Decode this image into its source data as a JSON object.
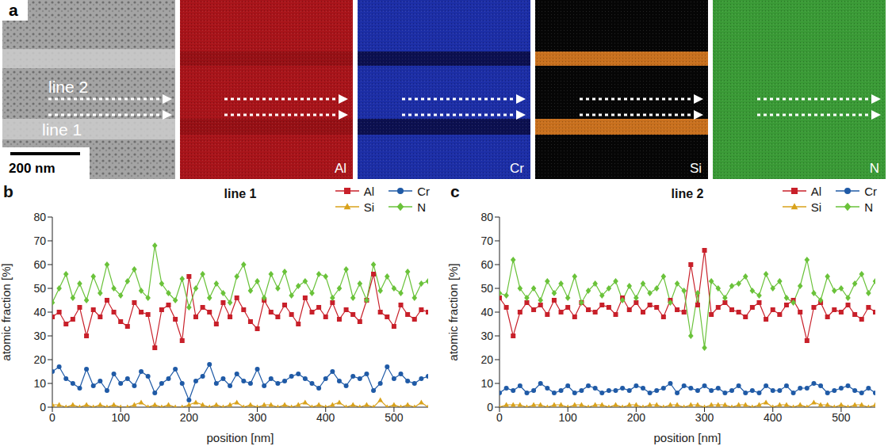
{
  "panel_a": {
    "panel_label": "a",
    "scale_bar": "200 nm",
    "line_labels": [
      "line 1",
      "line 2"
    ],
    "maps": [
      "Al",
      "Cr",
      "Si",
      "N"
    ]
  },
  "chart_data": [
    {
      "type": "line",
      "panel": "b",
      "title": "line 1",
      "x_label": "position [nm]",
      "y_label": "atomic fraction [%]",
      "xlim": [
        0,
        550
      ],
      "xticks": [
        0,
        100,
        200,
        300,
        400,
        500
      ],
      "ylim": [
        0,
        80
      ],
      "yticks": [
        0,
        10,
        20,
        30,
        40,
        50,
        60,
        70,
        80
      ],
      "grid": false,
      "legend": "top right",
      "x": [
        0,
        10,
        20,
        30,
        40,
        50,
        60,
        70,
        80,
        90,
        100,
        110,
        120,
        130,
        140,
        150,
        160,
        170,
        180,
        190,
        200,
        210,
        220,
        230,
        240,
        250,
        260,
        270,
        280,
        290,
        300,
        310,
        320,
        330,
        340,
        350,
        360,
        370,
        380,
        390,
        400,
        410,
        420,
        430,
        440,
        450,
        460,
        470,
        480,
        490,
        500,
        510,
        520,
        530,
        540,
        550
      ],
      "series": [
        {
          "name": "Al",
          "color": "#c8202a",
          "marker": "square",
          "values": [
            38,
            40,
            35,
            37,
            42,
            30,
            41,
            38,
            45,
            40,
            36,
            34,
            44,
            40,
            39,
            25,
            41,
            43,
            37,
            28,
            55,
            38,
            42,
            40,
            35,
            44,
            38,
            46,
            41,
            36,
            33,
            45,
            40,
            38,
            43,
            39,
            35,
            46,
            40,
            42,
            38,
            44,
            37,
            41,
            39,
            36,
            45,
            56,
            40,
            38,
            34,
            43,
            39,
            37,
            41,
            40
          ]
        },
        {
          "name": "Cr",
          "color": "#1f5aa6",
          "marker": "circle",
          "values": [
            15,
            17,
            12,
            10,
            8,
            16,
            9,
            11,
            7,
            14,
            10,
            12,
            9,
            15,
            13,
            6,
            10,
            12,
            16,
            10,
            3,
            11,
            13,
            18,
            10,
            12,
            9,
            14,
            11,
            10,
            16,
            9,
            12,
            10,
            11,
            13,
            14,
            12,
            10,
            8,
            12,
            15,
            11,
            9,
            13,
            12,
            14,
            7,
            10,
            17,
            12,
            14,
            11,
            10,
            12,
            13
          ]
        },
        {
          "name": "Si",
          "color": "#d9a21b",
          "marker": "triangle",
          "values": [
            1,
            1,
            0,
            1,
            0,
            1,
            0,
            1,
            0,
            1,
            0,
            0,
            1,
            2,
            0,
            1,
            0,
            1,
            0,
            0,
            1,
            2,
            1,
            0,
            1,
            0,
            1,
            2,
            0,
            1,
            0,
            1,
            1,
            0,
            1,
            0,
            1,
            2,
            0,
            1,
            0,
            1,
            2,
            0,
            1,
            0,
            1,
            0,
            3,
            0,
            1,
            0,
            1,
            0,
            2,
            0
          ]
        },
        {
          "name": "N",
          "color": "#6ac23a",
          "marker": "diamond",
          "values": [
            44,
            50,
            56,
            46,
            52,
            45,
            55,
            48,
            60,
            50,
            47,
            53,
            58,
            49,
            46,
            68,
            52,
            48,
            45,
            54,
            42,
            50,
            56,
            46,
            52,
            48,
            44,
            55,
            60,
            49,
            53,
            46,
            56,
            50,
            57,
            47,
            51,
            53,
            48,
            56,
            55,
            46,
            50,
            58,
            46,
            52,
            45,
            60,
            49,
            55,
            50,
            48,
            57,
            46,
            52,
            53
          ]
        }
      ]
    },
    {
      "type": "line",
      "panel": "c",
      "title": "line 2",
      "x_label": "position [nm]",
      "y_label": "atomic fraction [%]",
      "xlim": [
        0,
        550
      ],
      "xticks": [
        0,
        100,
        200,
        300,
        400,
        500
      ],
      "ylim": [
        0,
        80
      ],
      "yticks": [
        0,
        10,
        20,
        30,
        40,
        50,
        60,
        70,
        80
      ],
      "grid": false,
      "legend": "top right",
      "x": [
        0,
        10,
        20,
        30,
        40,
        50,
        60,
        70,
        80,
        90,
        100,
        110,
        120,
        130,
        140,
        150,
        160,
        170,
        180,
        190,
        200,
        210,
        220,
        230,
        240,
        250,
        260,
        270,
        280,
        290,
        300,
        310,
        320,
        330,
        340,
        350,
        360,
        370,
        380,
        390,
        400,
        410,
        420,
        430,
        440,
        450,
        460,
        470,
        480,
        490,
        500,
        510,
        520,
        530,
        540,
        550
      ],
      "series": [
        {
          "name": "Al",
          "color": "#c8202a",
          "marker": "square",
          "values": [
            46,
            42,
            30,
            40,
            44,
            41,
            43,
            39,
            45,
            40,
            42,
            38,
            44,
            41,
            40,
            43,
            42,
            39,
            46,
            41,
            44,
            40,
            43,
            42,
            38,
            45,
            41,
            40,
            60,
            43,
            66,
            39,
            42,
            44,
            41,
            40,
            38,
            42,
            44,
            37,
            41,
            39,
            43,
            45,
            40,
            28,
            42,
            44,
            38,
            41,
            40,
            43,
            39,
            37,
            42,
            40
          ]
        },
        {
          "name": "Cr",
          "color": "#1f5aa6",
          "marker": "circle",
          "values": [
            6,
            8,
            7,
            9,
            6,
            7,
            10,
            8,
            6,
            7,
            9,
            6,
            7,
            9,
            8,
            6,
            7,
            7,
            8,
            7,
            9,
            8,
            6,
            7,
            8,
            10,
            6,
            9,
            8,
            7,
            9,
            7,
            8,
            6,
            7,
            9,
            6,
            7,
            6,
            9,
            7,
            7,
            9,
            6,
            8,
            8,
            10,
            9,
            6,
            7,
            8,
            9,
            7,
            6,
            8,
            6
          ]
        },
        {
          "name": "Si",
          "color": "#d9a21b",
          "marker": "triangle",
          "values": [
            0,
            1,
            1,
            1,
            0,
            1,
            1,
            0,
            1,
            1,
            0,
            1,
            1,
            0,
            1,
            1,
            0,
            1,
            0,
            1,
            1,
            0,
            1,
            1,
            0,
            1,
            1,
            0,
            1,
            1,
            0,
            1,
            1,
            1,
            0,
            1,
            1,
            0,
            1,
            2,
            0,
            1,
            1,
            0,
            1,
            0,
            2,
            1,
            1,
            0,
            1,
            0,
            1,
            1,
            0,
            1
          ]
        },
        {
          "name": "N",
          "color": "#6ac23a",
          "marker": "diamond",
          "values": [
            48,
            47,
            62,
            50,
            46,
            50,
            45,
            53,
            48,
            52,
            46,
            55,
            44,
            49,
            52,
            47,
            50,
            53,
            45,
            51,
            46,
            52,
            48,
            50,
            55,
            44,
            52,
            49,
            30,
            48,
            25,
            53,
            50,
            46,
            51,
            52,
            55,
            49,
            47,
            56,
            50,
            53,
            46,
            44,
            51,
            62,
            48,
            45,
            55,
            49,
            50,
            46,
            52,
            56,
            48,
            53
          ]
        }
      ]
    }
  ]
}
